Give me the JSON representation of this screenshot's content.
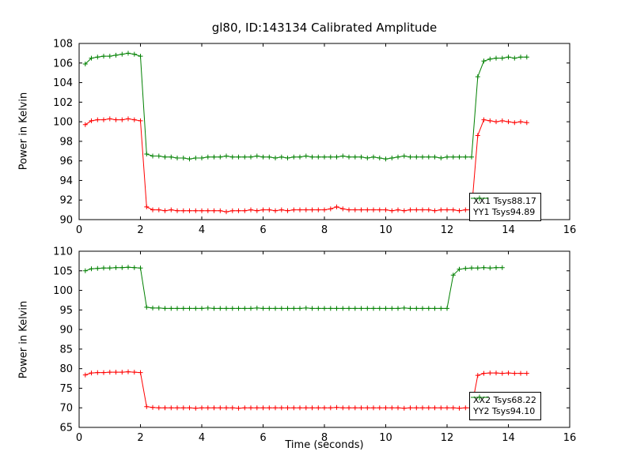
{
  "figure": {
    "title": "gl80, ID:143134 Calibrated Amplitude",
    "background": "#ffffff",
    "axes_color": "#000000"
  },
  "chart_data": [
    {
      "type": "line",
      "title": "gl80, ID:143134 Calibrated Amplitude",
      "xlabel": "",
      "ylabel": "Power in Kelvin",
      "xlim": [
        0,
        16
      ],
      "ylim": [
        90,
        108
      ],
      "xticks": [
        0,
        2,
        4,
        6,
        8,
        10,
        12,
        14,
        16
      ],
      "yticks": [
        90,
        92,
        94,
        96,
        98,
        100,
        102,
        104,
        106,
        108
      ],
      "grid": false,
      "legend_position": "lower right",
      "marker": "plus",
      "x": [
        0.2,
        0.4,
        0.6,
        0.8,
        1.0,
        1.2,
        1.4,
        1.6,
        1.8,
        2.0,
        2.2,
        2.4,
        2.6,
        2.8,
        3.0,
        3.2,
        3.4,
        3.6,
        3.8,
        4.0,
        4.2,
        4.4,
        4.6,
        4.8,
        5.0,
        5.2,
        5.4,
        5.6,
        5.8,
        6.0,
        6.2,
        6.4,
        6.6,
        6.8,
        7.0,
        7.2,
        7.4,
        7.6,
        7.8,
        8.0,
        8.2,
        8.4,
        8.6,
        8.8,
        9.0,
        9.2,
        9.4,
        9.6,
        9.8,
        10.0,
        10.2,
        10.4,
        10.6,
        10.8,
        11.0,
        11.2,
        11.4,
        11.6,
        11.8,
        12.0,
        12.2,
        12.4,
        12.6,
        12.8,
        13.0,
        13.2,
        13.4,
        13.6,
        13.8,
        14.0,
        14.2,
        14.4,
        14.6
      ],
      "series": [
        {
          "name": "XX1 Tsys88.17",
          "color": "#ff0000",
          "values": [
            99.7,
            100.1,
            100.2,
            100.2,
            100.3,
            100.2,
            100.2,
            100.3,
            100.2,
            100.1,
            91.3,
            91.0,
            91.0,
            90.9,
            91.0,
            90.9,
            90.9,
            90.9,
            90.9,
            90.9,
            90.9,
            90.9,
            90.9,
            90.8,
            90.9,
            90.9,
            90.9,
            91.0,
            90.9,
            91.0,
            91.0,
            90.9,
            91.0,
            90.9,
            91.0,
            91.0,
            91.0,
            91.0,
            91.0,
            91.0,
            91.1,
            91.3,
            91.1,
            91.0,
            91.0,
            91.0,
            91.0,
            91.0,
            91.0,
            91.0,
            90.9,
            91.0,
            90.9,
            91.0,
            91.0,
            91.0,
            91.0,
            90.9,
            91.0,
            91.0,
            91.0,
            90.9,
            91.0,
            91.0,
            98.6,
            100.2,
            100.1,
            100.0,
            100.1,
            100.0,
            99.9,
            100.0,
            99.9
          ]
        },
        {
          "name": "YY1 Tsys94.89",
          "color": "#008000",
          "values": [
            105.9,
            106.5,
            106.6,
            106.7,
            106.7,
            106.8,
            106.9,
            107.0,
            106.9,
            106.7,
            96.7,
            96.5,
            96.5,
            96.4,
            96.4,
            96.3,
            96.3,
            96.2,
            96.3,
            96.3,
            96.4,
            96.4,
            96.4,
            96.5,
            96.4,
            96.4,
            96.4,
            96.4,
            96.5,
            96.4,
            96.4,
            96.3,
            96.4,
            96.3,
            96.4,
            96.4,
            96.5,
            96.4,
            96.4,
            96.4,
            96.4,
            96.4,
            96.5,
            96.4,
            96.4,
            96.4,
            96.3,
            96.4,
            96.3,
            96.2,
            96.3,
            96.4,
            96.5,
            96.4,
            96.4,
            96.4,
            96.4,
            96.4,
            96.3,
            96.4,
            96.4,
            96.4,
            96.4,
            96.4,
            104.6,
            106.2,
            106.4,
            106.5,
            106.5,
            106.6,
            106.5,
            106.6,
            106.6
          ]
        }
      ]
    },
    {
      "type": "line",
      "title": "",
      "xlabel": "Time (seconds)",
      "ylabel": "Power in Kelvin",
      "xlim": [
        0,
        16
      ],
      "ylim": [
        65,
        110
      ],
      "xticks": [
        0,
        2,
        4,
        6,
        8,
        10,
        12,
        14,
        16
      ],
      "yticks": [
        65,
        70,
        75,
        80,
        85,
        90,
        95,
        100,
        105,
        110
      ],
      "grid": false,
      "legend_position": "lower right",
      "marker": "plus",
      "x": [
        0.2,
        0.4,
        0.6,
        0.8,
        1.0,
        1.2,
        1.4,
        1.6,
        1.8,
        2.0,
        2.2,
        2.4,
        2.6,
        2.8,
        3.0,
        3.2,
        3.4,
        3.6,
        3.8,
        4.0,
        4.2,
        4.4,
        4.6,
        4.8,
        5.0,
        5.2,
        5.4,
        5.6,
        5.8,
        6.0,
        6.2,
        6.4,
        6.6,
        6.8,
        7.0,
        7.2,
        7.4,
        7.6,
        7.8,
        8.0,
        8.2,
        8.4,
        8.6,
        8.8,
        9.0,
        9.2,
        9.4,
        9.6,
        9.8,
        10.0,
        10.2,
        10.4,
        10.6,
        10.8,
        11.0,
        11.2,
        11.4,
        11.6,
        11.8,
        12.0,
        12.2,
        12.4,
        12.6,
        12.8,
        13.0,
        13.2,
        13.4,
        13.6,
        13.8,
        14.0,
        14.2,
        14.4,
        14.6
      ],
      "series": [
        {
          "name": "XX2 Tsys68.22",
          "color": "#ff0000",
          "values": [
            78.4,
            78.9,
            79.0,
            79.0,
            79.1,
            79.1,
            79.1,
            79.2,
            79.1,
            79.0,
            70.3,
            70.1,
            70.0,
            70.0,
            70.0,
            70.0,
            70.0,
            70.0,
            69.9,
            70.0,
            70.0,
            70.0,
            70.0,
            70.0,
            70.0,
            69.9,
            70.0,
            70.0,
            70.0,
            70.0,
            70.0,
            70.0,
            70.0,
            70.0,
            70.0,
            70.0,
            70.0,
            70.0,
            70.0,
            70.0,
            70.0,
            70.1,
            70.0,
            70.0,
            70.0,
            70.0,
            70.0,
            70.0,
            70.0,
            70.0,
            70.0,
            70.0,
            69.9,
            70.0,
            70.0,
            70.0,
            70.0,
            70.0,
            70.0,
            70.0,
            70.0,
            69.9,
            70.0,
            70.0,
            78.3,
            78.8,
            78.9,
            78.9,
            78.8,
            78.9,
            78.8,
            78.8,
            78.8
          ]
        },
        {
          "name": "YY2 Tsys94.10",
          "color": "#008000",
          "values": [
            105.0,
            105.5,
            105.6,
            105.7,
            105.7,
            105.8,
            105.8,
            105.9,
            105.8,
            105.7,
            95.7,
            95.5,
            95.5,
            95.4,
            95.4,
            95.4,
            95.4,
            95.4,
            95.4,
            95.4,
            95.5,
            95.4,
            95.4,
            95.4,
            95.4,
            95.4,
            95.4,
            95.4,
            95.5,
            95.4,
            95.4,
            95.4,
            95.4,
            95.4,
            95.4,
            95.4,
            95.5,
            95.4,
            95.4,
            95.4,
            95.4,
            95.4,
            95.4,
            95.4,
            95.4,
            95.4,
            95.4,
            95.4,
            95.4,
            95.4,
            95.4,
            95.4,
            95.5,
            95.4,
            95.4,
            95.4,
            95.4,
            95.4,
            95.4,
            95.4,
            103.9,
            105.4,
            105.6,
            105.7,
            105.7,
            105.8,
            105.7,
            105.8,
            105.8
          ]
        }
      ]
    }
  ]
}
